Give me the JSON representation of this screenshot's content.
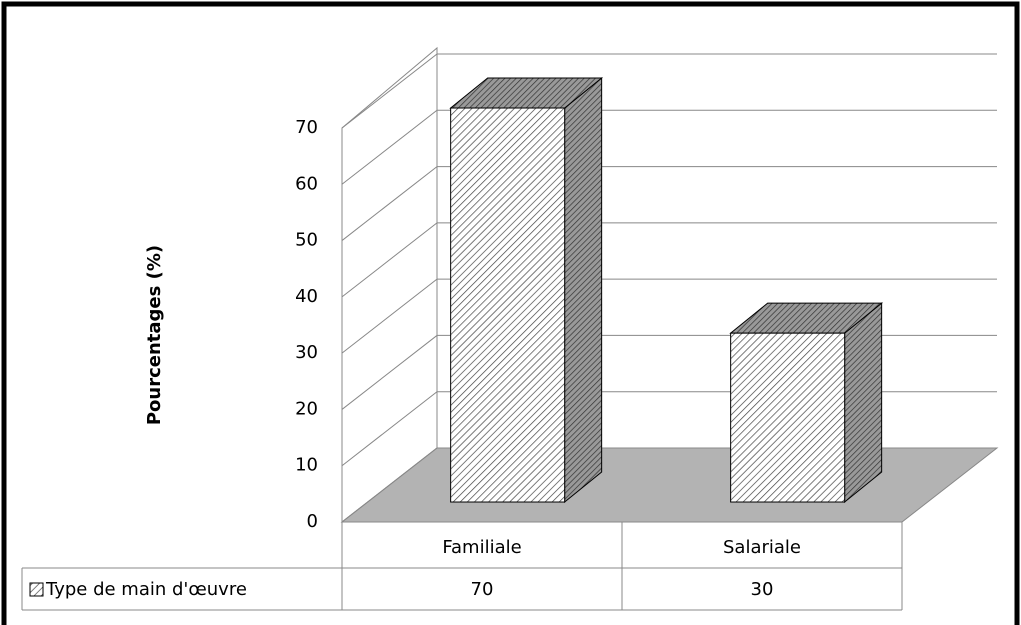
{
  "chart_data": {
    "type": "bar3d",
    "y_label": "Pourcentages (%)",
    "categories": [
      "Familiale",
      "Salariale"
    ],
    "series": [
      {
        "name": "Type de main d'œuvre",
        "color": "#ffffff",
        "values": [
          70,
          30
        ]
      }
    ],
    "ylim": [
      0,
      70
    ],
    "yticks": [
      0,
      10,
      20,
      30,
      40,
      50,
      60,
      70
    ],
    "grid": true,
    "legend": "table"
  }
}
